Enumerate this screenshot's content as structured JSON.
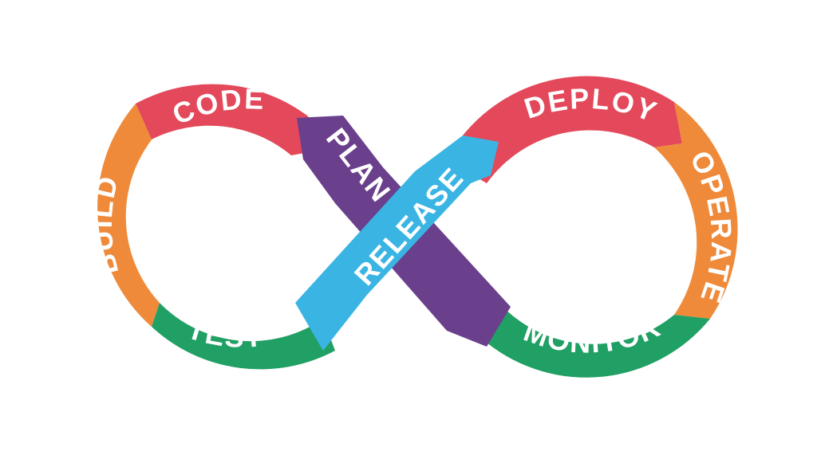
{
  "diagram": {
    "kind": "infinity-loop",
    "stages": {
      "plan": {
        "label": "PLAN",
        "color": "#6a3f8c"
      },
      "code": {
        "label": "CODE",
        "color": "#e3495a"
      },
      "build": {
        "label": "BUILD",
        "color": "#ef8a3a"
      },
      "test": {
        "label": "TEST",
        "color": "#20a065"
      },
      "release": {
        "label": "RELEASE",
        "color": "#3ab5e3"
      },
      "deploy": {
        "label": "DEPLOY",
        "color": "#e3495a"
      },
      "operate": {
        "label": "OPERATE",
        "color": "#ef8a3a"
      },
      "monitor": {
        "label": "MONITOR",
        "color": "#20a065"
      }
    },
    "text_color": "#ffffff"
  }
}
